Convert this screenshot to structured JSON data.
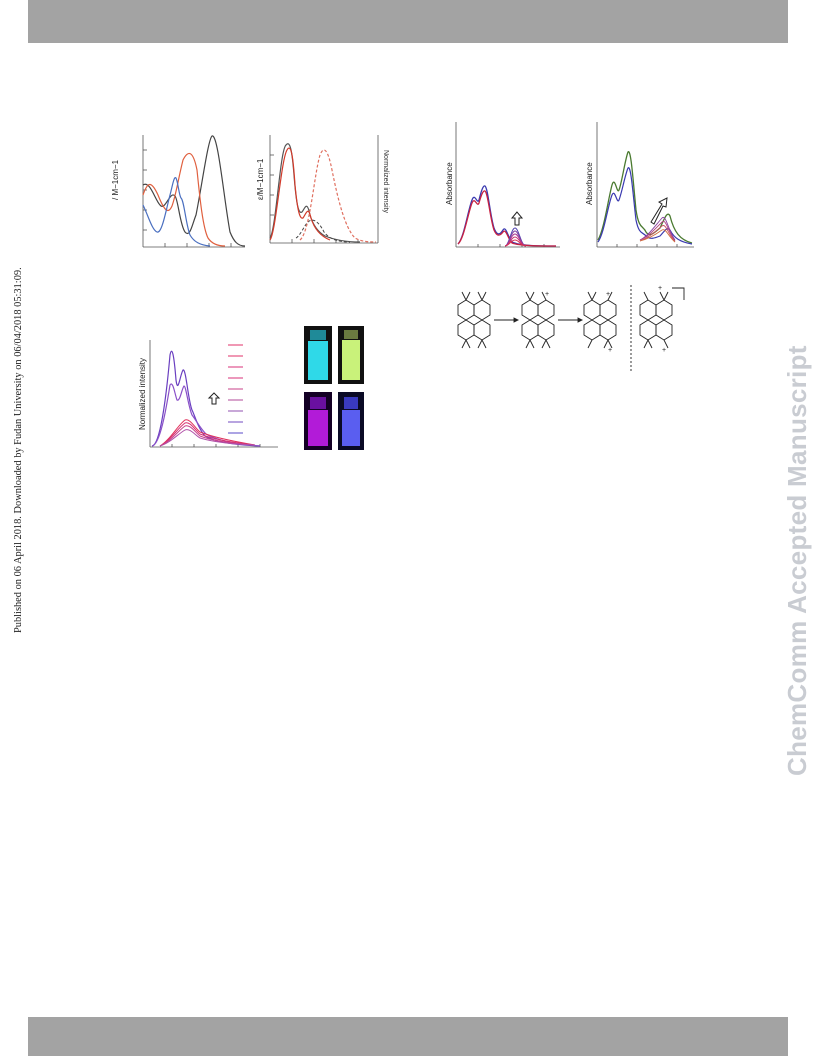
{
  "side_note": "Published on 06 April 2018. Downloaded by Fudan University on 06/04/2018 05:31:09.",
  "watermark": "ChemComm Accepted Manuscript",
  "figure": {
    "panel_a_ylabel": "/ M−1cm−1",
    "panel_b_ylabel": "ε/M−1cm−1",
    "panel_b_ylabel2": "Normalized intensity",
    "panel_c_ylabel": "Normalized intensity",
    "panel_d_ylabel": "Absorbance",
    "panel_e_ylabel": "Absorbance",
    "scheme_labels": [
      "+",
      "+",
      "+",
      "+",
      "+"
    ]
  },
  "colors": {
    "header_bar": "#a3a3a3",
    "watermark": "#c9ccd2",
    "cyan_vial": "#2fd9e8",
    "green_vial": "#c9f27a",
    "purple_vial": "#b21bd8",
    "blue_vial": "#5a5ef0"
  }
}
